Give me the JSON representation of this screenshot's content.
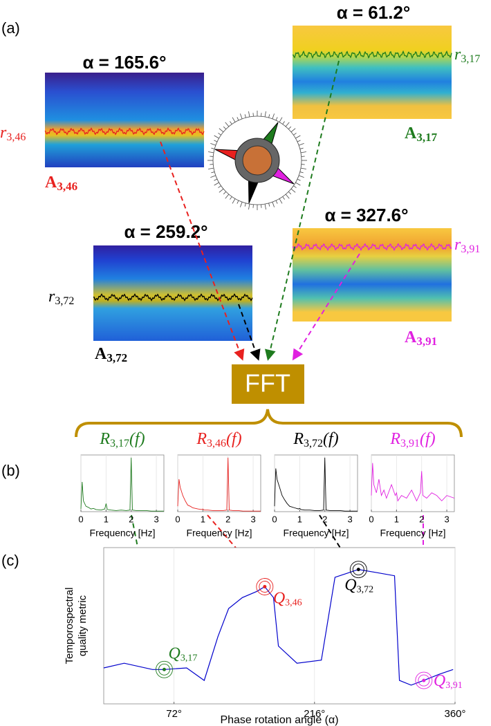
{
  "panel_labels": [
    "(a)",
    "(b)",
    "(c)"
  ],
  "views": [
    {
      "alpha": "α = 165.6°",
      "r_label": "r",
      "r_sub": "3,46",
      "a_label": "A",
      "a_sub": "3,46"
    },
    {
      "alpha": "α = 61.2°",
      "r_label": "r",
      "r_sub": "3,17",
      "a_label": "A",
      "a_sub": "3,17"
    },
    {
      "alpha": "α = 259.2°",
      "r_label": "r",
      "r_sub": "3,72",
      "a_label": "A",
      "a_sub": "3,72"
    },
    {
      "alpha": "α = 327.6°",
      "r_label": "r",
      "r_sub": "3,91",
      "a_label": "A",
      "a_sub": "3,91"
    }
  ],
  "fft": "FFT",
  "chart_data": [
    {
      "type": "line",
      "title": "R",
      "title_sub": "3,17",
      "title_suffix": "(f)",
      "color": "#1e7b1e",
      "x": [
        0,
        0.05,
        0.1,
        0.2,
        0.3,
        0.4,
        0.5,
        0.6,
        0.8,
        0.95,
        1.0,
        1.05,
        1.2,
        1.4,
        1.6,
        1.8,
        1.95,
        2.0,
        2.05,
        2.2,
        2.4,
        2.6,
        2.8,
        3.0,
        3.3
      ],
      "values": [
        0.05,
        0.55,
        0.2,
        0.1,
        0.08,
        0.05,
        0.06,
        0.04,
        0.03,
        0.05,
        0.15,
        0.04,
        0.03,
        0.02,
        0.03,
        0.02,
        0.03,
        1.0,
        0.03,
        0.02,
        0.02,
        0.02,
        0.01,
        0.01,
        0.01
      ],
      "xlim": [
        0,
        3.3
      ],
      "ylim": [
        0,
        1.05
      ],
      "xticks": [
        0,
        1,
        2,
        3
      ],
      "xlabel": "Frequency [Hz]",
      "grid": true
    },
    {
      "type": "line",
      "title": "R",
      "title_sub": "3,46",
      "title_suffix": "(f)",
      "color": "#e8211f",
      "x": [
        0,
        0.05,
        0.1,
        0.2,
        0.3,
        0.4,
        0.5,
        0.6,
        0.8,
        0.95,
        1.0,
        1.05,
        1.2,
        1.4,
        1.6,
        1.8,
        1.95,
        2.0,
        2.05,
        2.2,
        2.4,
        2.6,
        2.8,
        3.0,
        3.3
      ],
      "values": [
        0.1,
        0.6,
        0.45,
        0.3,
        0.2,
        0.12,
        0.1,
        0.07,
        0.05,
        0.04,
        0.05,
        0.03,
        0.03,
        0.02,
        0.02,
        0.02,
        0.03,
        1.0,
        0.03,
        0.02,
        0.02,
        0.01,
        0.01,
        0.01,
        0.01
      ],
      "xlim": [
        0,
        3.3
      ],
      "ylim": [
        0,
        1.05
      ],
      "xticks": [
        0,
        1,
        2,
        3
      ],
      "xlabel": "Frequency [Hz]",
      "grid": true
    },
    {
      "type": "line",
      "title": "R",
      "title_sub": "3,72",
      "title_suffix": "(f)",
      "color": "#000000",
      "x": [
        0,
        0.05,
        0.1,
        0.2,
        0.3,
        0.4,
        0.5,
        0.6,
        0.8,
        0.95,
        1.0,
        1.05,
        1.2,
        1.4,
        1.6,
        1.8,
        1.95,
        2.0,
        2.05,
        2.2,
        2.4,
        2.6,
        2.8,
        3.0,
        3.3
      ],
      "values": [
        0.1,
        0.8,
        0.6,
        0.45,
        0.3,
        0.22,
        0.15,
        0.1,
        0.07,
        0.05,
        0.06,
        0.04,
        0.03,
        0.03,
        0.02,
        0.02,
        0.03,
        1.0,
        0.03,
        0.02,
        0.02,
        0.02,
        0.01,
        0.01,
        0.01
      ],
      "xlim": [
        0,
        3.3
      ],
      "ylim": [
        0,
        1.05
      ],
      "xticks": [
        0,
        1,
        2,
        3
      ],
      "xlabel": "Frequency [Hz]",
      "grid": true
    },
    {
      "type": "line",
      "title": "R",
      "title_sub": "3,91",
      "title_suffix": "(f)",
      "color": "#e020e0",
      "x": [
        0,
        0.05,
        0.1,
        0.2,
        0.3,
        0.4,
        0.5,
        0.6,
        0.8,
        0.95,
        1.0,
        1.05,
        1.2,
        1.4,
        1.6,
        1.8,
        1.95,
        2.0,
        2.05,
        2.2,
        2.4,
        2.6,
        2.8,
        3.0,
        3.3
      ],
      "values": [
        0.3,
        0.9,
        0.5,
        0.35,
        0.6,
        0.3,
        0.4,
        0.25,
        0.5,
        0.3,
        0.35,
        0.2,
        0.3,
        0.25,
        0.4,
        0.2,
        0.35,
        0.75,
        0.3,
        0.25,
        0.35,
        0.3,
        0.2,
        0.3,
        0.25
      ],
      "xlim": [
        0,
        3.3
      ],
      "ylim": [
        0,
        1.05
      ],
      "xticks": [
        0,
        1,
        2,
        3
      ],
      "xlabel": "Frequency [Hz]",
      "grid": true
    },
    {
      "type": "line",
      "color": "#0000cc",
      "x": [
        0,
        21,
        50,
        62,
        85,
        103,
        117,
        128,
        142,
        157,
        165,
        174,
        179,
        198,
        223,
        237,
        261,
        280,
        298,
        303,
        315,
        328,
        344,
        358
      ],
      "values": [
        0.23,
        0.26,
        0.22,
        0.22,
        0.23,
        0.15,
        0.43,
        0.61,
        0.68,
        0.72,
        0.75,
        0.68,
        0.37,
        0.26,
        0.28,
        0.81,
        0.86,
        0.84,
        0.82,
        0.15,
        0.12,
        0.15,
        0.19,
        0.22
      ],
      "xlim": [
        0,
        360
      ],
      "ylim": [
        0,
        1
      ],
      "xticks": [
        {
          "value": 72,
          "label": "72°"
        },
        {
          "value": 216,
          "label": "216°"
        },
        {
          "value": 360,
          "label": "360°"
        }
      ],
      "xlabel": "Phase rotation angle (α)",
      "ylabel": [
        "Temporospectral",
        "quality metric"
      ],
      "grid": true,
      "annotations": [
        {
          "label": "Q",
          "sub": "3,17",
          "x": 62,
          "y": 0.22,
          "color": "#1e7b1e"
        },
        {
          "label": "Q",
          "sub": "3,46",
          "x": 165,
          "y": 0.75,
          "color": "#e8211f"
        },
        {
          "label": "Q",
          "sub": "3,72",
          "x": 261,
          "y": 0.86,
          "color": "#000000"
        },
        {
          "label": "Q",
          "sub": "3,91",
          "x": 328,
          "y": 0.15,
          "color": "#e020e0"
        }
      ]
    }
  ]
}
